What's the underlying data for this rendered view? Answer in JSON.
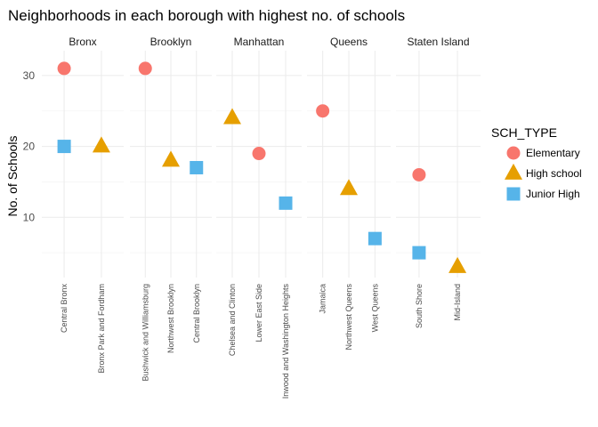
{
  "chart_data": {
    "type": "scatter",
    "title": "Neighborhoods in each borough with highest no. of schools",
    "xlabel": "",
    "ylabel": "No. of Schools",
    "ylim": [
      1.5,
      33.5
    ],
    "yticks": [
      10,
      20,
      30
    ],
    "grid": true,
    "legend": {
      "title": "SCH_TYPE",
      "placement": "right",
      "entries": [
        {
          "name": "Elementary",
          "shape": "circle",
          "color": "#F8766D"
        },
        {
          "name": "High school",
          "shape": "triangle",
          "color": "#E69F00"
        },
        {
          "name": "Junior High",
          "shape": "square",
          "color": "#56B4E9"
        }
      ]
    },
    "panels": [
      {
        "name": "Bronx",
        "categories": [
          "Central Bronx",
          "Bronx Park and Fordham"
        ],
        "points": [
          {
            "x": "Central Bronx",
            "y": 31,
            "type": "Elementary"
          },
          {
            "x": "Central Bronx",
            "y": 20,
            "type": "Junior High"
          },
          {
            "x": "Bronx Park and Fordham",
            "y": 20,
            "type": "High school"
          }
        ]
      },
      {
        "name": "Brooklyn",
        "categories": [
          "Bushwick and Williamsburg",
          "Northwest Brooklyn",
          "Central Brooklyn"
        ],
        "points": [
          {
            "x": "Bushwick and Williamsburg",
            "y": 31,
            "type": "Elementary"
          },
          {
            "x": "Northwest Brooklyn",
            "y": 18,
            "type": "High school"
          },
          {
            "x": "Central Brooklyn",
            "y": 17,
            "type": "Junior High"
          }
        ]
      },
      {
        "name": "Manhattan",
        "categories": [
          "Chelsea and Clinton",
          "Lower East Side",
          "Inwood and Washington Heights"
        ],
        "points": [
          {
            "x": "Chelsea and Clinton",
            "y": 24,
            "type": "High school"
          },
          {
            "x": "Lower East Side",
            "y": 19,
            "type": "Elementary"
          },
          {
            "x": "Inwood and Washington Heights",
            "y": 12,
            "type": "Junior High"
          }
        ]
      },
      {
        "name": "Queens",
        "categories": [
          "Jamaica",
          "Northwest Queens",
          "West Queens"
        ],
        "points": [
          {
            "x": "Jamaica",
            "y": 25,
            "type": "Elementary"
          },
          {
            "x": "Northwest Queens",
            "y": 14,
            "type": "High school"
          },
          {
            "x": "West Queens",
            "y": 7,
            "type": "Junior High"
          }
        ]
      },
      {
        "name": "Staten Island",
        "categories": [
          "South Shore",
          "Mid-Island"
        ],
        "points": [
          {
            "x": "South Shore",
            "y": 16,
            "type": "Elementary"
          },
          {
            "x": "South Shore",
            "y": 5,
            "type": "Junior High"
          },
          {
            "x": "Mid-Island",
            "y": 3,
            "type": "High school"
          }
        ]
      }
    ]
  }
}
